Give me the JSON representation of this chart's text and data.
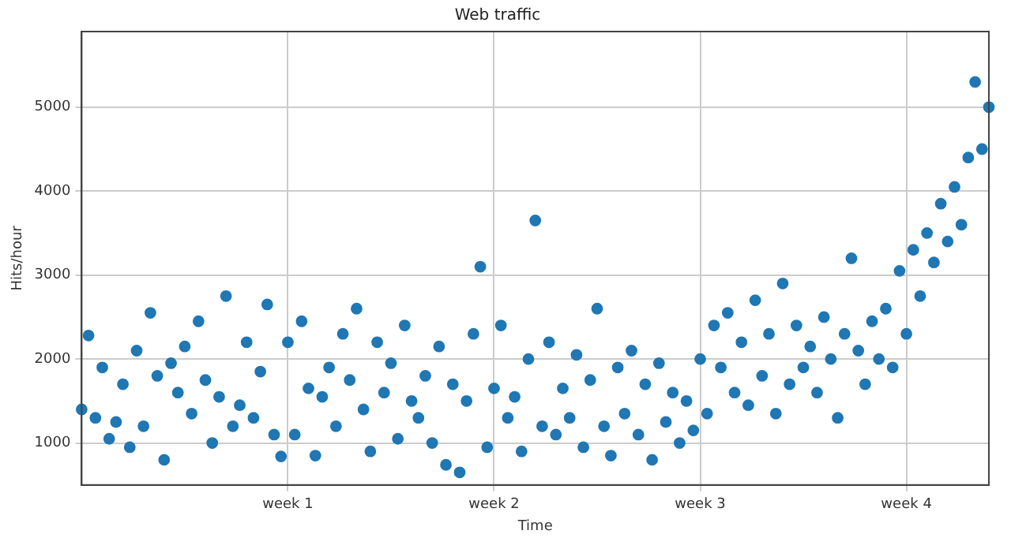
{
  "chart_data": {
    "type": "scatter",
    "title": "Web traffic",
    "xlabel": "Time",
    "ylabel": "Hits/hour",
    "color": "#1f77b4",
    "marker": "circle",
    "grid": true,
    "legend": false,
    "categories": [
      null,
      null,
      null,
      null,
      null,
      null,
      null,
      null,
      null,
      null,
      null,
      null,
      null,
      null,
      null,
      null,
      null,
      null,
      null,
      null,
      null,
      null,
      null,
      null,
      null,
      null,
      null,
      null,
      null,
      null,
      "week 1",
      null,
      null,
      null,
      null,
      null,
      null,
      null,
      null,
      null,
      null,
      null,
      null,
      null,
      null,
      null,
      null,
      null,
      null,
      null,
      null,
      null,
      null,
      null,
      null,
      null,
      null,
      null,
      null,
      null,
      "week 2",
      null,
      null,
      null,
      null,
      null,
      null,
      null,
      null,
      null,
      null,
      null,
      null,
      null,
      null,
      null,
      null,
      null,
      null,
      null,
      null,
      null,
      null,
      null,
      null,
      null,
      null,
      null,
      null,
      null,
      "week 3",
      null,
      null,
      null,
      null,
      null,
      null,
      null,
      null,
      null,
      null,
      null,
      null,
      null,
      null,
      null,
      null,
      null,
      null,
      null,
      null,
      null,
      null,
      null,
      null,
      null,
      null,
      null,
      null,
      null,
      "week 4",
      null,
      null,
      null,
      null,
      null,
      null,
      null,
      null,
      null,
      null,
      null,
      null
    ],
    "ylim": [
      500,
      5900
    ],
    "yticks": [
      1000,
      2000,
      3000,
      4000,
      5000
    ],
    "values": [
      1400,
      2280,
      1300,
      1900,
      1050,
      1250,
      1700,
      950,
      2100,
      1200,
      2550,
      1800,
      800,
      1950,
      1600,
      2150,
      1350,
      2450,
      1750,
      1000,
      1550,
      2750,
      1200,
      1450,
      2200,
      1300,
      1850,
      2650,
      1100,
      840,
      2200,
      1100,
      2450,
      1650,
      850,
      1550,
      1900,
      1200,
      2300,
      1750,
      2600,
      1400,
      900,
      2200,
      1600,
      1950,
      1050,
      2400,
      1500,
      1300,
      1800,
      1000,
      2150,
      740,
      1700,
      650,
      1500,
      2300,
      3100,
      950,
      1650,
      2400,
      1300,
      1550,
      900,
      2000,
      3650,
      1200,
      2200,
      1100,
      1650,
      1300,
      2050,
      950,
      1750,
      2600,
      1200,
      850,
      1900,
      1350,
      2100,
      1100,
      1700,
      800,
      1950,
      1250,
      1600,
      1000,
      1500,
      1150,
      2000,
      1350,
      2400,
      1900,
      2550,
      1600,
      2200,
      1450,
      2700,
      1800,
      2300,
      1350,
      2900,
      1700,
      2400,
      1900,
      2150,
      1600,
      2500,
      2000,
      1300,
      2300,
      3200,
      2100,
      1700,
      2450,
      2000,
      2600,
      1900,
      3050,
      2300,
      3300,
      2750,
      3500,
      3150,
      3850,
      3400,
      4050,
      3600,
      4400,
      5300,
      4500,
      5000
    ]
  }
}
